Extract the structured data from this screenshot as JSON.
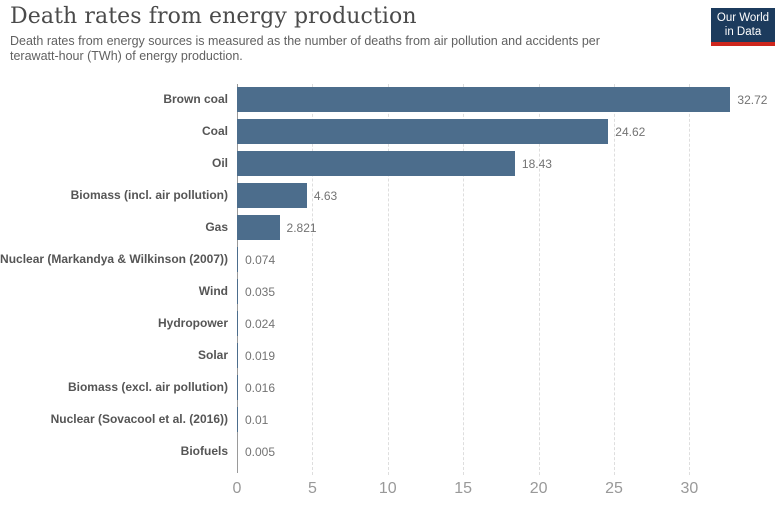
{
  "header": {
    "title": "Death rates from energy production",
    "subtitle": "Death rates from energy sources is measured as the number of deaths from air pollution and accidents per terawatt-hour (TWh) of energy production."
  },
  "logo": {
    "line1": "Our World",
    "line2": "in Data",
    "bg_color": "#1c3b5d",
    "underline_color": "#ce261d"
  },
  "chart_data": {
    "type": "bar",
    "orientation": "horizontal",
    "title": "Death rates from energy production",
    "xlabel": "",
    "ylabel": "",
    "xlim": [
      0,
      33
    ],
    "grid": true,
    "categories": [
      "Brown coal",
      "Coal",
      "Oil",
      "Biomass (incl. air pollution)",
      "Gas",
      "Nuclear (Markandya & Wilkinson (2007))",
      "Wind",
      "Hydropower",
      "Solar",
      "Biomass (excl. air pollution)",
      "Nuclear (Sovacool et al. (2016))",
      "Biofuels"
    ],
    "values": [
      32.72,
      24.62,
      18.43,
      4.63,
      2.821,
      0.074,
      0.035,
      0.024,
      0.019,
      0.016,
      0.01,
      0.005
    ],
    "value_labels": [
      "32.72",
      "24.62",
      "18.43",
      "4.63",
      "2.821",
      "0.074",
      "0.035",
      "0.024",
      "0.019",
      "0.016",
      "0.01",
      "0.005"
    ],
    "xticks": [
      0,
      5,
      10,
      15,
      20,
      25,
      30
    ],
    "xtick_labels": [
      "0",
      "5",
      "10",
      "15",
      "20",
      "25",
      "30"
    ],
    "bar_color": "#4C6D8C",
    "gridline_color": "#dedede",
    "axis_line_color": "#9a9a9a",
    "tick_label_color": "#999999"
  }
}
